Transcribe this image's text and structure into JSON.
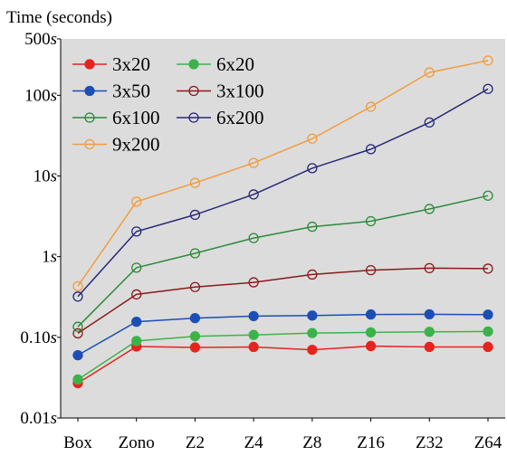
{
  "chart_data": {
    "type": "line",
    "title": "",
    "ylabel": "Time (seconds)",
    "xlabel": "",
    "yscale": "log",
    "ylim": [
      0.01,
      500
    ],
    "grid": false,
    "background": "#dcdcdc",
    "legend_position": "top-left",
    "categories": [
      "Box",
      "Zono",
      "Z2",
      "Z4",
      "Z8",
      "Z16",
      "Z32",
      "Z64"
    ],
    "yticks": [
      {
        "value": 500,
        "label": "500s"
      },
      {
        "value": 100,
        "label": "100s"
      },
      {
        "value": 10,
        "label": "10s"
      },
      {
        "value": 1,
        "label": "1s"
      },
      {
        "value": 0.1,
        "label": "0.10s"
      },
      {
        "value": 0.01,
        "label": "0.01s"
      }
    ],
    "series": [
      {
        "name": "3x20",
        "color": "#e8231e",
        "marker": "filled",
        "values": [
          0.027,
          0.077,
          0.075,
          0.076,
          0.07,
          0.078,
          0.076,
          0.076
        ]
      },
      {
        "name": "6x20",
        "color": "#3cb34a",
        "marker": "filled",
        "values": [
          0.03,
          0.09,
          0.103,
          0.107,
          0.113,
          0.115,
          0.117,
          0.118
        ]
      },
      {
        "name": "3x50",
        "color": "#1c4fb5",
        "marker": "filled",
        "values": [
          0.06,
          0.156,
          0.173,
          0.183,
          0.186,
          0.192,
          0.193,
          0.191
        ]
      },
      {
        "name": "3x100",
        "color": "#8b1a1a",
        "marker": "hollow",
        "values": [
          0.112,
          0.34,
          0.42,
          0.48,
          0.6,
          0.68,
          0.72,
          0.71
        ]
      },
      {
        "name": "6x100",
        "color": "#2d8a3a",
        "marker": "hollow",
        "values": [
          0.135,
          0.73,
          1.1,
          1.7,
          2.35,
          2.75,
          3.9,
          5.7
        ]
      },
      {
        "name": "6x200",
        "color": "#28287a",
        "marker": "hollow",
        "values": [
          0.32,
          2.05,
          3.3,
          5.9,
          12.5,
          21.5,
          46,
          120
        ]
      },
      {
        "name": "9x200",
        "color": "#f39c3c",
        "marker": "hollow",
        "values": [
          0.43,
          4.8,
          8.2,
          14.5,
          29,
          72,
          192,
          270
        ]
      }
    ]
  }
}
